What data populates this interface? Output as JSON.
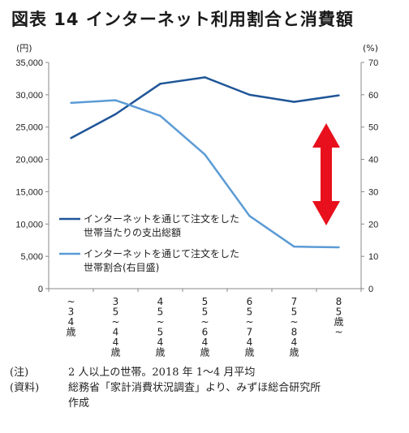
{
  "title": "図表 14 インターネット利用割合と消費額",
  "notes": [
    {
      "label": "(注)",
      "text": "2 人以上の世帯。2018 年 1～4 月平均"
    },
    {
      "label": "(資料)",
      "text": "総務省「家計消費状況調査」より、みずほ総合研究所",
      "cont": "作成"
    }
  ],
  "colors": {
    "spending": "#1f5597",
    "share": "#5b9bd5",
    "arrow": "#e8101c",
    "axis": "#888888"
  },
  "chart_data": {
    "type": "line",
    "categories": [
      "~34歳",
      "35~44歳",
      "45~54歳",
      "55~64歳",
      "65~74歳",
      "75~84歳",
      "85歳~"
    ],
    "category_labels_vertical": [
      "~\n3\n4\n歳",
      "3\n5\n~\n4\n4\n歳",
      "4\n5\n~\n5\n4\n歳",
      "5\n5\n~\n6\n4\n歳",
      "6\n5\n~\n7\n4\n歳",
      "7\n5\n~\n8\n4\n歳",
      "8\n5\n歳\n~"
    ],
    "y_left": {
      "unit": "(円)",
      "ylim": [
        0,
        35000
      ],
      "ticks": [
        "0",
        "5,000",
        "10,000",
        "15,000",
        "20,000",
        "25,000",
        "30,000",
        "35,000"
      ]
    },
    "y_right": {
      "unit": "(%)",
      "ylim": [
        0,
        70
      ],
      "ticks": [
        "0",
        "10",
        "20",
        "30",
        "40",
        "50",
        "60",
        "70"
      ]
    },
    "series": [
      {
        "name": "インターネットを通じて注文をした世帯当たりの支出総額",
        "legend_lines": [
          "インターネットを通じて注文をした",
          "世帯当たりの支出総額"
        ],
        "axis": "left",
        "values": [
          23300,
          27000,
          31700,
          32700,
          30000,
          28900,
          29900
        ]
      },
      {
        "name": "インターネットを通じて注文をした世帯割合(右目盛)",
        "legend_lines": [
          "インターネットを通じて注文をした",
          "世帯割合(右目盛)"
        ],
        "axis": "right",
        "values": [
          57.5,
          58.3,
          53.5,
          41.5,
          22.5,
          13,
          12.8
        ]
      }
    ],
    "annotation": "double-headed red arrow indicating divergence",
    "grid": false,
    "legend_position": "lower-left"
  }
}
